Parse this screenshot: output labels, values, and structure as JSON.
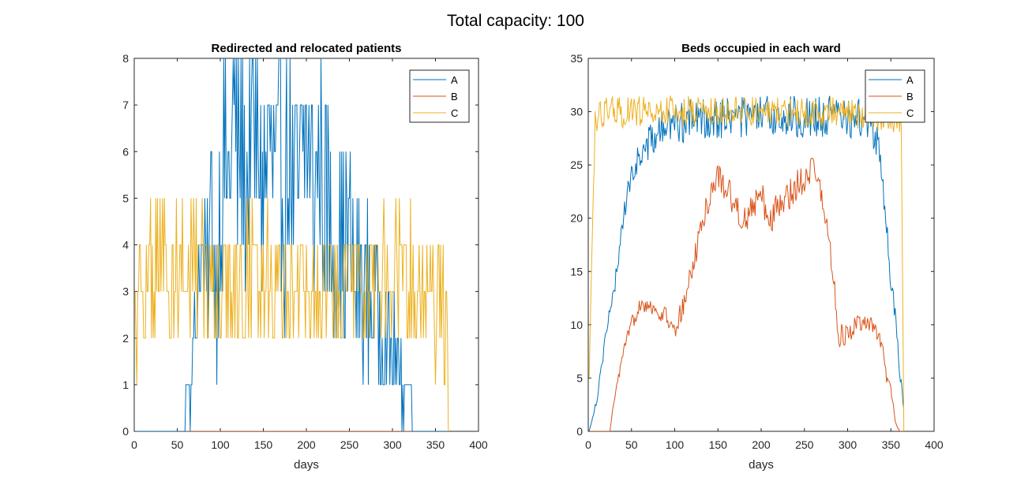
{
  "figure": {
    "suptitle": "Total capacity: 100"
  },
  "chart_data": [
    {
      "type": "line",
      "title": "Redirected and relocated patients",
      "xlabel": "days",
      "ylabel": "",
      "xlim": [
        0,
        400
      ],
      "ylim": [
        0,
        8
      ],
      "xticks": [
        0,
        50,
        100,
        150,
        200,
        250,
        300,
        350,
        400
      ],
      "yticks": [
        0,
        1,
        2,
        3,
        4,
        5,
        6,
        7,
        8
      ],
      "grid": false,
      "legend_position": "top-right",
      "x": "days 1-365 (one value per day)",
      "series": [
        {
          "name": "A",
          "color": "#0072BD",
          "segments": [
            [
              1,
              0
            ],
            [
              55,
              0
            ],
            [
              60,
              1
            ],
            [
              65,
              1
            ],
            [
              70,
              2
            ],
            [
              78,
              4
            ],
            [
              85,
              3
            ],
            [
              90,
              5
            ],
            [
              95,
              3
            ],
            [
              100,
              5
            ],
            [
              105,
              6
            ],
            [
              110,
              5
            ],
            [
              115,
              7
            ],
            [
              120,
              6
            ],
            [
              125,
              6
            ],
            [
              130,
              5
            ],
            [
              135,
              7
            ],
            [
              140,
              6
            ],
            [
              145,
              6
            ],
            [
              150,
              5
            ],
            [
              155,
              6
            ],
            [
              160,
              6
            ],
            [
              165,
              5
            ],
            [
              170,
              6
            ],
            [
              175,
              5
            ],
            [
              180,
              6
            ],
            [
              185,
              5
            ],
            [
              190,
              5
            ],
            [
              195,
              6
            ],
            [
              200,
              6
            ],
            [
              205,
              6
            ],
            [
              210,
              5
            ],
            [
              215,
              6
            ],
            [
              220,
              5
            ],
            [
              225,
              5
            ],
            [
              230,
              4
            ],
            [
              240,
              4
            ],
            [
              250,
              4
            ],
            [
              260,
              3
            ],
            [
              270,
              3
            ],
            [
              280,
              3
            ],
            [
              290,
              2
            ],
            [
              300,
              2
            ],
            [
              310,
              1
            ],
            [
              320,
              1
            ],
            [
              325,
              0
            ],
            [
              365,
              0
            ]
          ],
          "amplitude": [
            [
              1,
              0
            ],
            [
              55,
              0
            ],
            [
              60,
              0.5
            ],
            [
              70,
              1
            ],
            [
              80,
              1.5
            ],
            [
              90,
              2
            ],
            [
              100,
              2.5
            ],
            [
              110,
              2.6
            ],
            [
              130,
              2.6
            ],
            [
              160,
              2.5
            ],
            [
              200,
              2.6
            ],
            [
              230,
              2.4
            ],
            [
              250,
              2
            ],
            [
              270,
              1.8
            ],
            [
              290,
              1.4
            ],
            [
              310,
              1
            ],
            [
              325,
              0
            ],
            [
              365,
              0
            ]
          ],
          "range": [
            0,
            8
          ]
        },
        {
          "name": "B",
          "color": "#D95319",
          "segments": [
            [
              1,
              0
            ],
            [
              365,
              0
            ]
          ],
          "amplitude": [
            [
              1,
              0
            ],
            [
              365,
              0
            ]
          ],
          "range": [
            0,
            8
          ]
        },
        {
          "name": "C",
          "color": "#EDB120",
          "segments": [
            [
              1,
              2
            ],
            [
              5,
              3
            ],
            [
              30,
              3.5
            ],
            [
              100,
              3
            ],
            [
              150,
              3.3
            ],
            [
              200,
              3
            ],
            [
              250,
              3
            ],
            [
              300,
              3.5
            ],
            [
              340,
              3
            ],
            [
              364,
              2.5
            ],
            [
              365,
              0
            ]
          ],
          "amplitude": [
            [
              1,
              1.5
            ],
            [
              365,
              1.5
            ]
          ],
          "range": [
            0,
            6
          ]
        }
      ]
    },
    {
      "type": "line",
      "title": "Beds occupied in each ward",
      "xlabel": "days",
      "ylabel": "",
      "xlim": [
        0,
        400
      ],
      "ylim": [
        0,
        35
      ],
      "xticks": [
        0,
        50,
        100,
        150,
        200,
        250,
        300,
        350,
        400
      ],
      "yticks": [
        0,
        5,
        10,
        15,
        20,
        25,
        30,
        35
      ],
      "grid": false,
      "legend_position": "top-right",
      "x": "days 1-365 (one value per day)",
      "series": [
        {
          "name": "A",
          "color": "#0072BD",
          "segments": [
            [
              1,
              0
            ],
            [
              10,
              3
            ],
            [
              20,
              9
            ],
            [
              30,
              13
            ],
            [
              40,
              20
            ],
            [
              50,
              24
            ],
            [
              60,
              26
            ],
            [
              70,
              27
            ],
            [
              80,
              28
            ],
            [
              90,
              28.5
            ],
            [
              100,
              29
            ],
            [
              150,
              29.5
            ],
            [
              200,
              29.5
            ],
            [
              250,
              29.5
            ],
            [
              300,
              29.5
            ],
            [
              325,
              29
            ],
            [
              335,
              27
            ],
            [
              340,
              24
            ],
            [
              345,
              19
            ],
            [
              350,
              14
            ],
            [
              355,
              11
            ],
            [
              360,
              6
            ],
            [
              365,
              2
            ]
          ],
          "amplitude": [
            [
              1,
              0
            ],
            [
              20,
              0.8
            ],
            [
              50,
              1.2
            ],
            [
              80,
              1.8
            ],
            [
              100,
              2
            ],
            [
              320,
              2
            ],
            [
              340,
              1.5
            ],
            [
              365,
              0.5
            ]
          ],
          "range": [
            0,
            34
          ]
        },
        {
          "name": "B",
          "color": "#D95319",
          "segments": [
            [
              1,
              0
            ],
            [
              25,
              0
            ],
            [
              30,
              3
            ],
            [
              40,
              7
            ],
            [
              50,
              10
            ],
            [
              60,
              12
            ],
            [
              70,
              12
            ],
            [
              80,
              11
            ],
            [
              90,
              11
            ],
            [
              100,
              9
            ],
            [
              110,
              12
            ],
            [
              120,
              15
            ],
            [
              130,
              19
            ],
            [
              140,
              22
            ],
            [
              150,
              24
            ],
            [
              160,
              23
            ],
            [
              170,
              21
            ],
            [
              180,
              20
            ],
            [
              190,
              21
            ],
            [
              200,
              22
            ],
            [
              210,
              20
            ],
            [
              220,
              21
            ],
            [
              230,
              22
            ],
            [
              240,
              23
            ],
            [
              250,
              24
            ],
            [
              260,
              25
            ],
            [
              270,
              22
            ],
            [
              280,
              17
            ],
            [
              290,
              9
            ],
            [
              300,
              9
            ],
            [
              310,
              10
            ],
            [
              320,
              10
            ],
            [
              330,
              10
            ],
            [
              340,
              8
            ],
            [
              345,
              5
            ],
            [
              350,
              4
            ],
            [
              355,
              1
            ],
            [
              360,
              0
            ],
            [
              365,
              0
            ]
          ],
          "amplitude": [
            [
              1,
              0
            ],
            [
              25,
              0
            ],
            [
              40,
              0.7
            ],
            [
              100,
              1
            ],
            [
              150,
              1.5
            ],
            [
              250,
              1.5
            ],
            [
              300,
              1
            ],
            [
              340,
              0.6
            ],
            [
              365,
              0
            ]
          ],
          "range": [
            0,
            28
          ]
        },
        {
          "name": "C",
          "color": "#EDB120",
          "segments": [
            [
              1,
              5
            ],
            [
              5,
              20
            ],
            [
              8,
              29
            ],
            [
              20,
              30
            ],
            [
              100,
              30
            ],
            [
              200,
              30
            ],
            [
              300,
              30
            ],
            [
              358,
              29.5
            ],
            [
              362,
              29
            ],
            [
              365,
              0
            ]
          ],
          "amplitude": [
            [
              1,
              0
            ],
            [
              10,
              1.5
            ],
            [
              360,
              1.5
            ],
            [
              365,
              0
            ]
          ],
          "range": [
            0,
            33
          ]
        }
      ]
    }
  ]
}
